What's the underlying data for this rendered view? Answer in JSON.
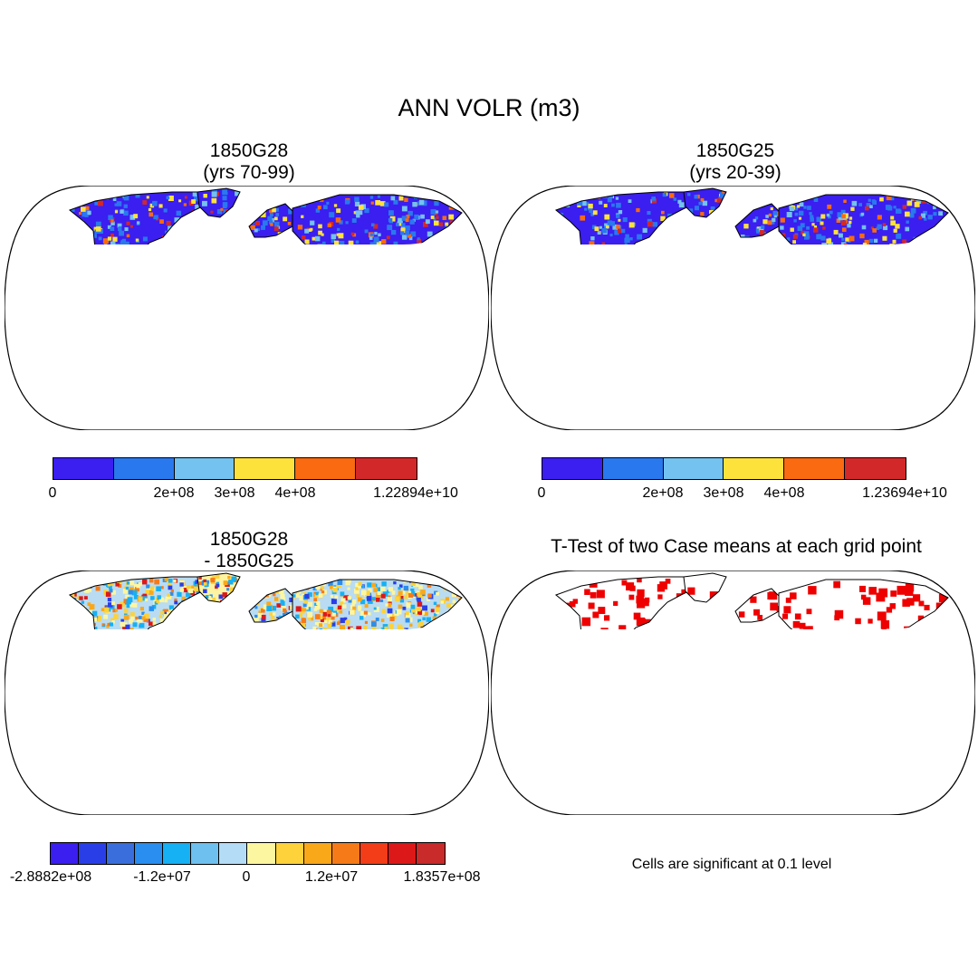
{
  "figure": {
    "title": "ANN VOLR (m3)"
  },
  "panels": {
    "p1": {
      "title_line1": "1850G28",
      "title_line2": "(yrs 70-99)"
    },
    "p2": {
      "title_line1": "1850G25",
      "title_line2": "(yrs 20-39)"
    },
    "p3": {
      "title_line1": "1850G28",
      "title_line2": "- 1850G25"
    },
    "p4": {
      "title_line1": "T-Test of two Case means at each grid point"
    }
  },
  "colorbars": {
    "cb1": {
      "colors": [
        "#3b1ef0",
        "#2a78ee",
        "#74c2ef",
        "#fde23c",
        "#fa6a10",
        "#d3282a"
      ],
      "labels": [
        "0",
        "2e+08",
        "3e+08",
        "4e+08",
        "1.22894e+10"
      ]
    },
    "cb2": {
      "colors": [
        "#3b1ef0",
        "#2a78ee",
        "#74c2ef",
        "#fde23c",
        "#fa6a10",
        "#d3282a"
      ],
      "labels": [
        "0",
        "2e+08",
        "3e+08",
        "4e+08",
        "1.23694e+10"
      ]
    },
    "cb3": {
      "colors": [
        "#3b1ef0",
        "#2a3ee8",
        "#3a6edc",
        "#2a8ef0",
        "#16b0f4",
        "#6ec0ef",
        "#b4dcf6",
        "#fdf6a0",
        "#fdd23a",
        "#f9a81a",
        "#f77a18",
        "#f33c18",
        "#dd1818",
        "#c92a2a"
      ],
      "labels": [
        "-2.8882e+08",
        "-1.2e+07",
        "0",
        "1.2e+07",
        "1.8357e+08"
      ]
    }
  },
  "significance_note": "Cells are significant at 0.1 level",
  "colors": {
    "land_base": "#3b1ef0",
    "diff_base": "#b9dcf3",
    "antarctic_diff": "#fdf3a0",
    "significant": "#ee0000",
    "ocean": "#ffffff"
  }
}
